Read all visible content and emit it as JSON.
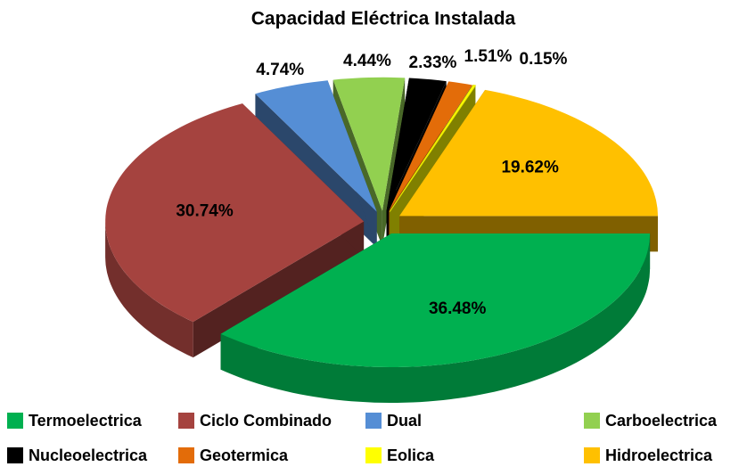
{
  "chart_data": {
    "type": "pie",
    "title": "Capacidad Eléctrica Instalada",
    "categories": [
      "Termoelectrica",
      "Ciclo Combinado",
      "Dual",
      "Carboelectrica",
      "Nucleoelectrica",
      "Geotermica",
      "Eolica",
      "Hidroelectrica"
    ],
    "values": [
      36.48,
      30.74,
      4.74,
      4.44,
      2.33,
      1.51,
      0.15,
      19.62
    ],
    "value_labels": [
      "36.48%",
      "30.74%",
      "4.74%",
      "4.44%",
      "2.33%",
      "1.51%",
      "0.15%",
      "19.62%"
    ],
    "colors": [
      "#00b050",
      "#a5433f",
      "#558ed5",
      "#92d050",
      "#000000",
      "#e36c09",
      "#ffff00",
      "#ffc000"
    ]
  }
}
